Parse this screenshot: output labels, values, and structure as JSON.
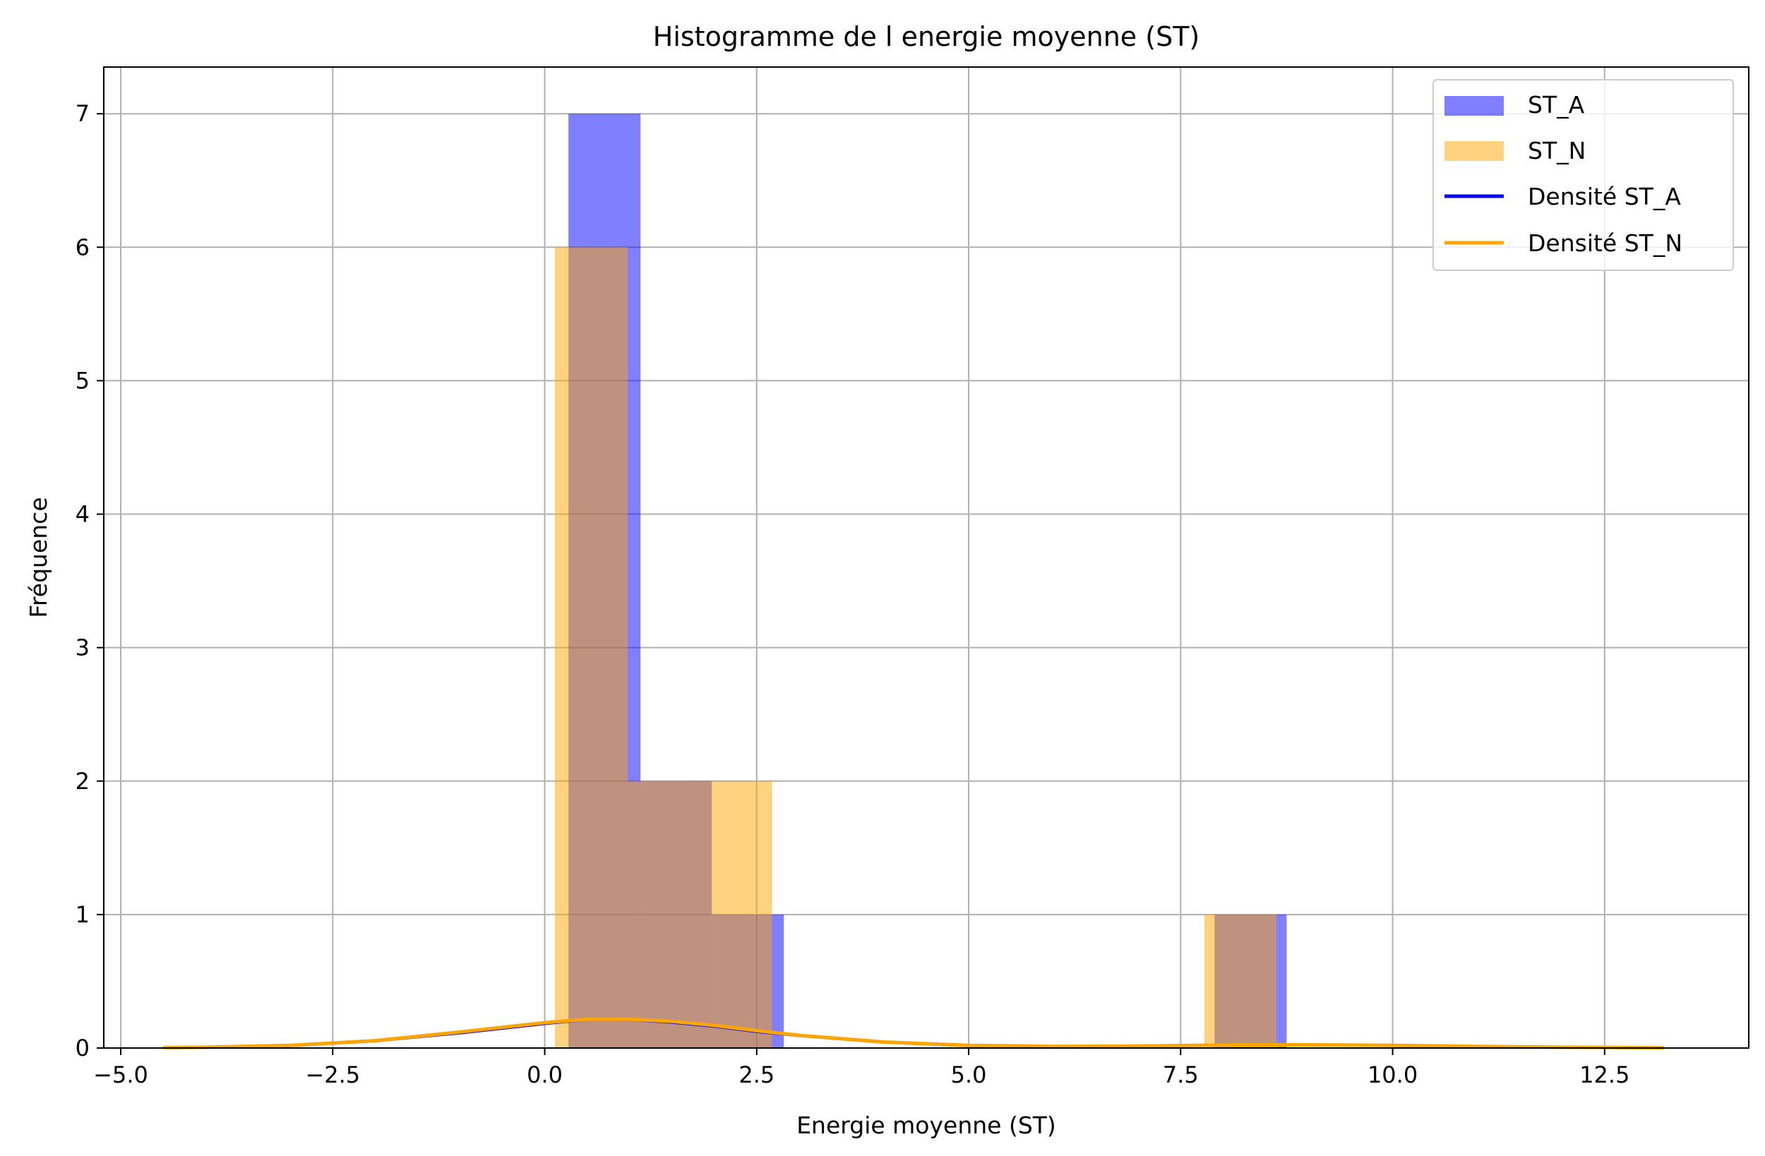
{
  "chart_data": {
    "type": "bar",
    "title": "Histogramme de l energie moyenne (ST)",
    "xlabel": "Energie moyenne (ST)",
    "ylabel": "Fréquence",
    "xlim": [
      -5.2,
      14.2
    ],
    "ylim": [
      0,
      7.35
    ],
    "x_ticks": [
      -5.0,
      -2.5,
      0.0,
      2.5,
      5.0,
      7.5,
      10.0,
      12.5
    ],
    "x_tick_labels": [
      "−5.0",
      "−2.5",
      "0.0",
      "2.5",
      "5.0",
      "7.5",
      "10.0",
      "12.5"
    ],
    "y_ticks": [
      0,
      1,
      2,
      3,
      4,
      5,
      6,
      7
    ],
    "y_tick_labels": [
      "0",
      "1",
      "2",
      "3",
      "4",
      "5",
      "6",
      "7"
    ],
    "grid": true,
    "legend_position": "top-right",
    "histograms": [
      {
        "name": "ST_A",
        "color": "#0000ff",
        "opacity": 0.5,
        "bins": [
          {
            "x0": 0.28,
            "x1": 1.13,
            "count": 7
          },
          {
            "x0": 1.13,
            "x1": 1.97,
            "count": 2
          },
          {
            "x0": 1.97,
            "x1": 2.82,
            "count": 1
          },
          {
            "x0": 7.9,
            "x1": 8.75,
            "count": 1
          }
        ]
      },
      {
        "name": "ST_N",
        "color": "#ffa500",
        "opacity": 0.5,
        "bins": [
          {
            "x0": 0.12,
            "x1": 0.98,
            "count": 6
          },
          {
            "x0": 0.98,
            "x1": 1.83,
            "count": 2
          },
          {
            "x0": 1.83,
            "x1": 2.68,
            "count": 2
          },
          {
            "x0": 7.78,
            "x1": 8.63,
            "count": 1
          }
        ]
      }
    ],
    "series": [
      {
        "name": "Densité ST_A",
        "color": "#0000ff",
        "x": [
          -4.5,
          -4.0,
          -3.0,
          -2.0,
          -1.0,
          0.0,
          0.5,
          1.0,
          1.5,
          2.0,
          2.5,
          3.0,
          4.0,
          5.0,
          6.0,
          7.0,
          8.0,
          9.0,
          10.0,
          11.0,
          12.0,
          13.2
        ],
        "y": [
          0.0,
          0.002,
          0.015,
          0.05,
          0.11,
          0.18,
          0.21,
          0.21,
          0.19,
          0.16,
          0.12,
          0.09,
          0.04,
          0.015,
          0.008,
          0.01,
          0.02,
          0.025,
          0.02,
          0.01,
          0.004,
          0.001
        ]
      },
      {
        "name": "Densité ST_N",
        "color": "#ffa500",
        "x": [
          -4.5,
          -4.0,
          -3.0,
          -2.0,
          -1.0,
          0.0,
          0.5,
          1.0,
          1.5,
          2.0,
          2.5,
          3.0,
          4.0,
          5.0,
          6.0,
          7.0,
          8.0,
          9.0,
          10.0,
          11.0,
          12.0,
          13.2
        ],
        "y": [
          0.003,
          0.006,
          0.02,
          0.055,
          0.12,
          0.19,
          0.215,
          0.215,
          0.2,
          0.17,
          0.13,
          0.095,
          0.045,
          0.02,
          0.012,
          0.015,
          0.022,
          0.024,
          0.02,
          0.012,
          0.006,
          0.002
        ]
      }
    ]
  }
}
